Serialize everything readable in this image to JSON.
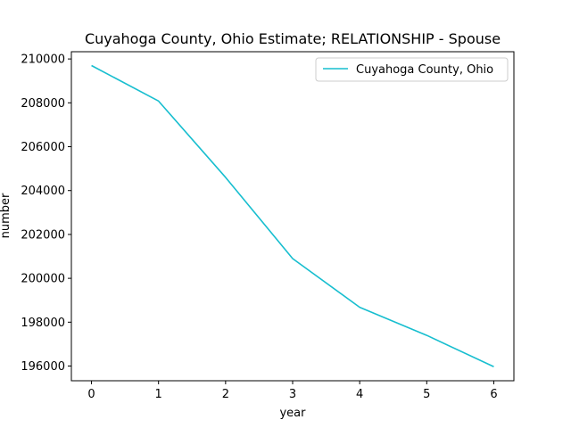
{
  "chart_data": {
    "type": "line",
    "title": "Cuyahoga County, Ohio Estimate; RELATIONSHIP - Spouse",
    "xlabel": "year",
    "ylabel": "number",
    "x": [
      0,
      1,
      2,
      3,
      4,
      5,
      6
    ],
    "series": [
      {
        "name": "Cuyahoga County, Ohio",
        "color": "#17becf",
        "values": [
          209700,
          208080,
          204600,
          200900,
          198680,
          197400,
          195970
        ]
      }
    ],
    "xlim": [
      -0.3,
      6.3
    ],
    "ylim": [
      195330,
      210330
    ],
    "x_ticks": [
      0,
      1,
      2,
      3,
      4,
      5,
      6
    ],
    "y_ticks": [
      196000,
      198000,
      200000,
      202000,
      204000,
      206000,
      208000,
      210000
    ],
    "grid": false,
    "legend_position": "top-right"
  }
}
